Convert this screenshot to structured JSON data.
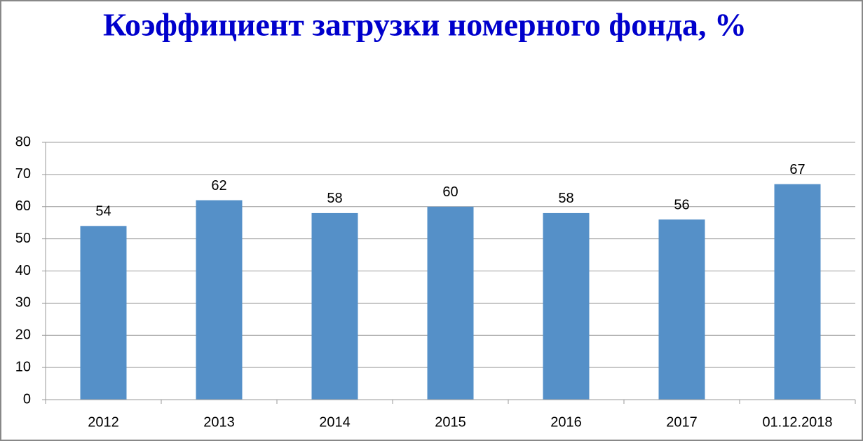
{
  "chart_data": {
    "type": "bar",
    "title": "Коэффициент загрузки номерного фонда, %",
    "categories": [
      "2012",
      "2013",
      "2014",
      "2015",
      "2016",
      "2017",
      "01.12.2018"
    ],
    "values": [
      54,
      62,
      58,
      60,
      58,
      56,
      67
    ],
    "color": "#5590c8",
    "ylim": [
      0,
      80
    ],
    "yticks": [
      0,
      10,
      20,
      30,
      40,
      50,
      60,
      70,
      80
    ],
    "grid": true
  }
}
